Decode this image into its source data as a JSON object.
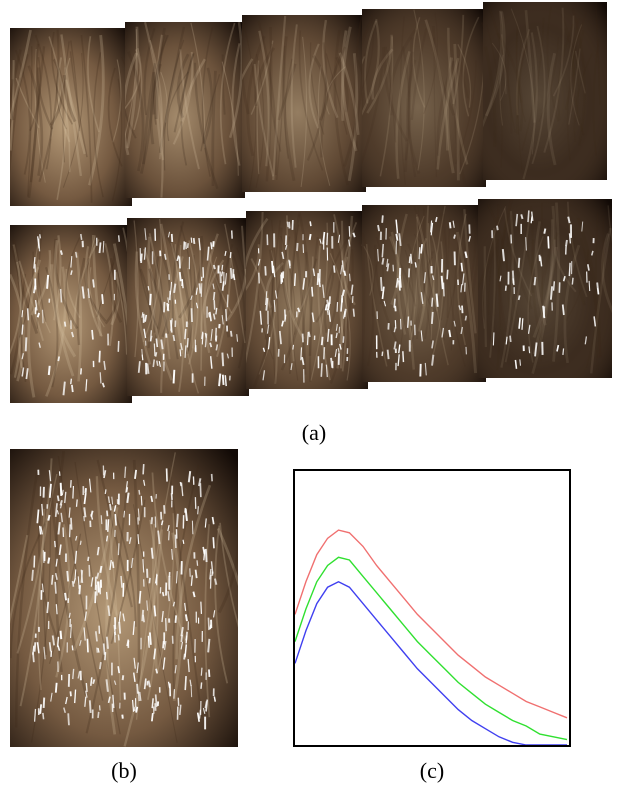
{
  "captions": {
    "a": "(a)",
    "b": "(b)",
    "c": "(c)"
  },
  "colors": {
    "hair_light": "#b59a78",
    "hair_mid": "#7a5e44",
    "hair_dark": "#120a06",
    "highlight": "#ffffff",
    "series_red": "#f07070",
    "series_green": "#30e030",
    "series_blue": "#4040f0"
  },
  "panel_a": {
    "rows": [
      {
        "name": "without-highlights",
        "images": 5,
        "brightness": [
          1.0,
          0.9,
          0.8,
          0.62,
          0.42
        ],
        "highlights": [
          0,
          0,
          0,
          0,
          0
        ]
      },
      {
        "name": "with-highlights",
        "images": 5,
        "brightness": [
          1.0,
          0.9,
          0.8,
          0.62,
          0.42
        ],
        "highlights": [
          0.35,
          0.8,
          0.7,
          0.55,
          0.4
        ]
      }
    ]
  },
  "panel_b": {
    "highlights": 1.0
  },
  "chart_data": {
    "type": "line",
    "title": "",
    "xlabel": "",
    "ylabel": "",
    "xlim": [
      0,
      100
    ],
    "ylim": [
      0,
      100
    ],
    "grid": false,
    "x": [
      0,
      4,
      8,
      12,
      16,
      20,
      25,
      30,
      35,
      40,
      45,
      50,
      55,
      60,
      65,
      70,
      75,
      80,
      85,
      90,
      95,
      100
    ],
    "series": [
      {
        "color": "#f07070",
        "values": [
          48,
          60,
          70,
          76,
          79,
          78,
          73,
          66,
          60,
          54,
          48,
          43,
          38,
          33,
          29,
          25,
          22,
          19,
          16,
          14,
          12,
          10
        ]
      },
      {
        "color": "#30e030",
        "values": [
          38,
          50,
          60,
          66,
          69,
          68,
          62,
          56,
          50,
          44,
          38,
          33,
          28,
          23,
          19,
          15,
          12,
          9,
          7,
          4,
          3,
          2
        ]
      },
      {
        "color": "#4040f0",
        "values": [
          30,
          42,
          52,
          58,
          60,
          58,
          52,
          46,
          40,
          34,
          28,
          23,
          18,
          13,
          9,
          6,
          3,
          1,
          0,
          0,
          0,
          0
        ]
      }
    ]
  }
}
